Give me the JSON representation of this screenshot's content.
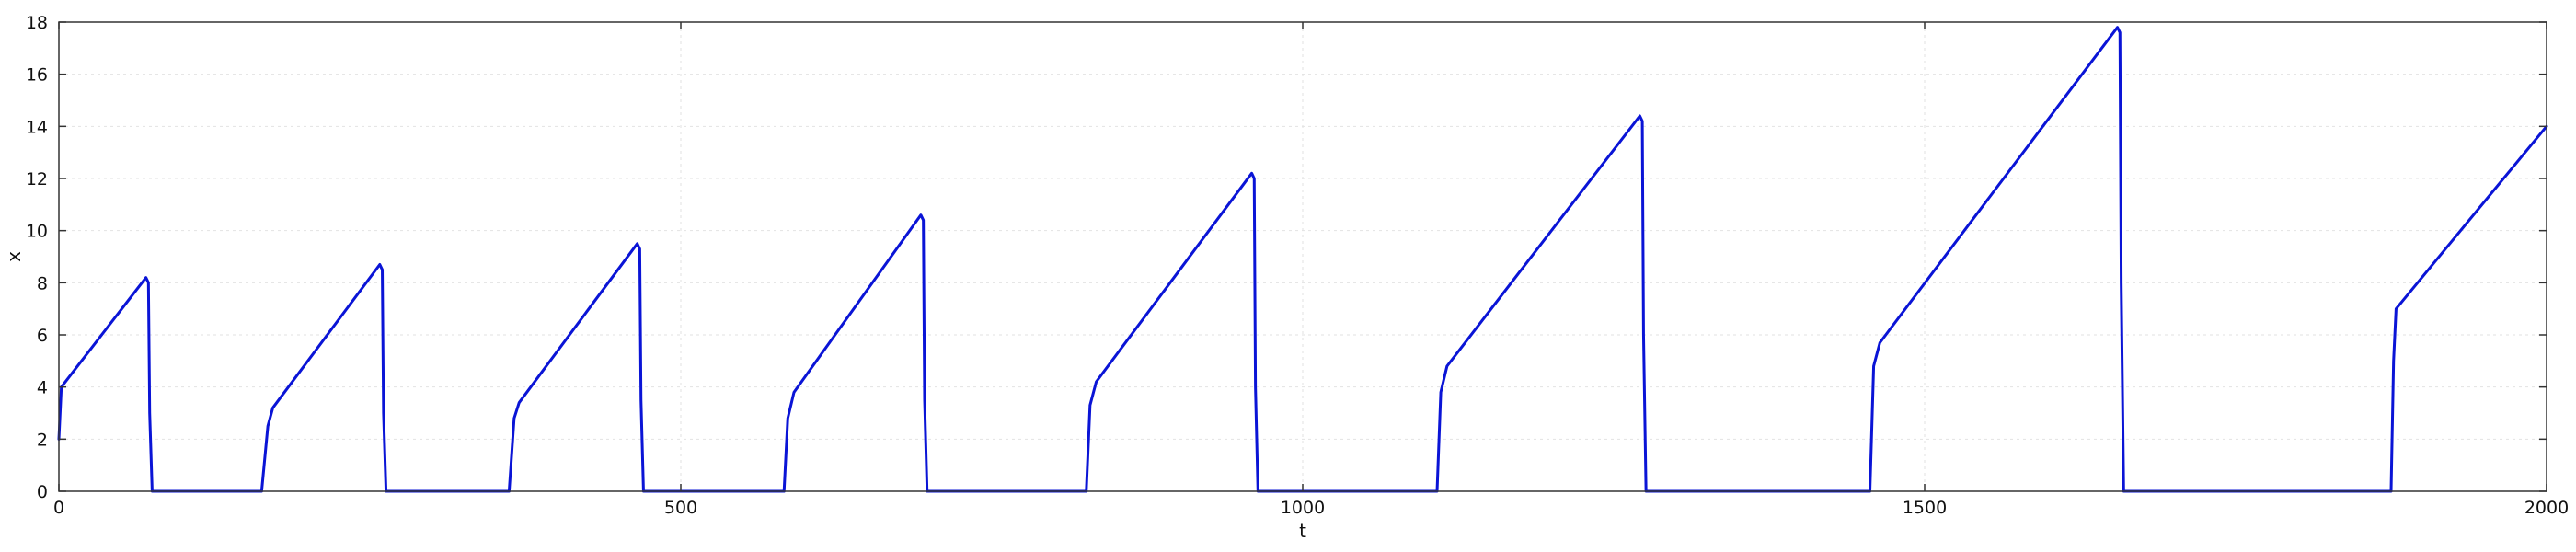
{
  "chart_data": {
    "type": "line",
    "title": "",
    "xlabel": "t",
    "ylabel": "x",
    "xlim": [
      0,
      2000
    ],
    "ylim": [
      0,
      18
    ],
    "xticks": [
      0,
      500,
      1000,
      1500,
      2000
    ],
    "yticks": [
      0,
      2,
      4,
      6,
      8,
      10,
      12,
      14,
      16,
      18
    ],
    "grid": true,
    "legend": "none",
    "colors": {
      "line": "#0a14d6",
      "grid": "#e2e2e2",
      "frame": "#333333"
    },
    "series": [
      {
        "x": [
          0,
          2,
          70,
          72,
          73,
          75,
          163,
          168,
          172,
          258,
          260,
          261,
          263,
          362,
          366,
          370,
          465,
          467,
          468,
          470,
          583,
          586,
          591,
          693,
          695,
          696,
          698,
          826,
          829,
          834,
          959,
          961,
          962,
          964,
          1108,
          1111,
          1116,
          1271,
          1273,
          1274,
          1276,
          1456,
          1459,
          1464,
          1655,
          1657,
          1658,
          1660,
          1875,
          1877,
          1879,
          2000
        ],
        "y": [
          2,
          4,
          8.2,
          8,
          3,
          0,
          0,
          2.5,
          3.2,
          8.7,
          8.5,
          3,
          0,
          0,
          2.8,
          3.4,
          9.5,
          9.3,
          3.5,
          0,
          0,
          2.8,
          3.8,
          10.6,
          10.4,
          3.5,
          0,
          0,
          3.3,
          4.2,
          12.2,
          12,
          4,
          0,
          0,
          3.8,
          4.8,
          14.4,
          14.2,
          6,
          0,
          0,
          4.8,
          5.7,
          17.8,
          17.6,
          8,
          0,
          0,
          5,
          7,
          14
        ]
      }
    ]
  }
}
